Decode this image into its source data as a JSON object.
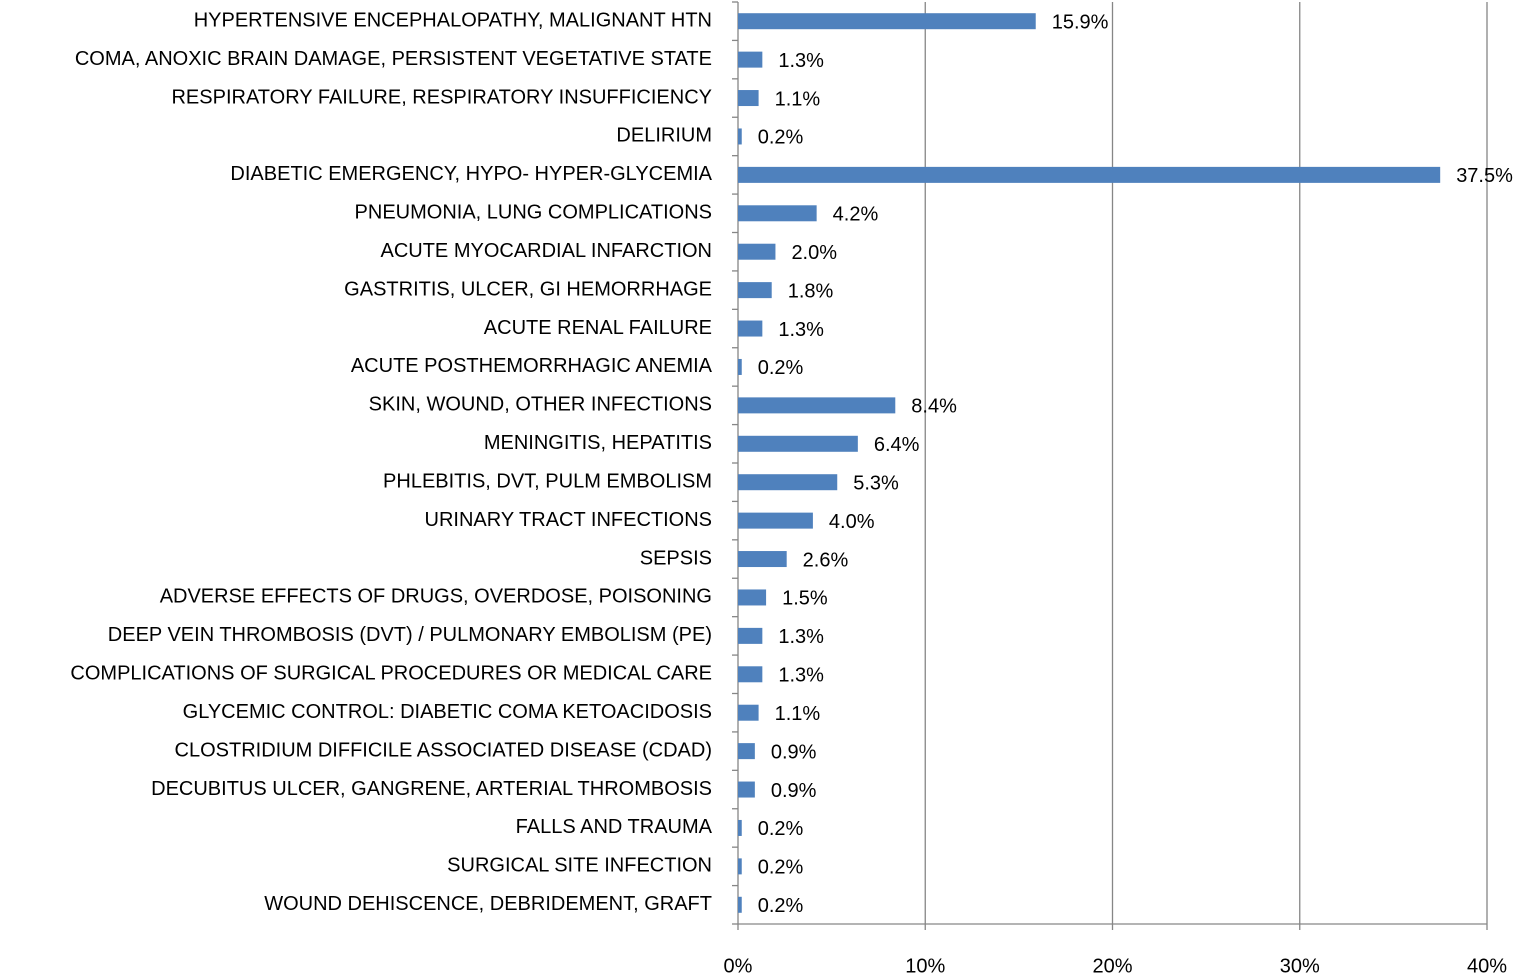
{
  "chart_data": {
    "type": "bar",
    "orientation": "horizontal",
    "categories": [
      "HYPERTENSIVE ENCEPHALOPATHY, MALIGNANT HTN",
      "COMA, ANOXIC BRAIN DAMAGE, PERSISTENT VEGETATIVE STATE",
      "RESPIRATORY FAILURE, RESPIRATORY INSUFFICIENCY",
      "DELIRIUM",
      "DIABETIC EMERGENCY, HYPO- HYPER-GLYCEMIA",
      "PNEUMONIA, LUNG COMPLICATIONS",
      "ACUTE MYOCARDIAL INFARCTION",
      "GASTRITIS, ULCER, GI HEMORRHAGE",
      "ACUTE RENAL FAILURE",
      "ACUTE POSTHEMORRHAGIC ANEMIA",
      "SKIN, WOUND, OTHER INFECTIONS",
      "MENINGITIS, HEPATITIS",
      "PHLEBITIS, DVT, PULM EMBOLISM",
      "URINARY TRACT INFECTIONS",
      "SEPSIS",
      "ADVERSE EFFECTS OF DRUGS, OVERDOSE, POISONING",
      "DEEP VEIN THROMBOSIS (DVT) / PULMONARY EMBOLISM (PE)",
      "COMPLICATIONS OF SURGICAL PROCEDURES OR MEDICAL CARE",
      "GLYCEMIC CONTROL: DIABETIC COMA KETOACIDOSIS",
      "CLOSTRIDIUM DIFFICILE ASSOCIATED DISEASE (CDAD)",
      "DECUBITUS ULCER, GANGRENE, ARTERIAL THROMBOSIS",
      "FALLS AND TRAUMA",
      "SURGICAL SITE INFECTION",
      "WOUND DEHISCENCE, DEBRIDEMENT, GRAFT"
    ],
    "values": [
      15.9,
      1.3,
      1.1,
      0.2,
      37.5,
      4.2,
      2.0,
      1.8,
      1.3,
      0.2,
      8.4,
      6.4,
      5.3,
      4.0,
      2.6,
      1.5,
      1.3,
      1.3,
      1.1,
      0.9,
      0.9,
      0.2,
      0.2,
      0.2
    ],
    "value_labels": [
      "15.9%",
      "1.3%",
      "1.1%",
      "0.2%",
      "37.5%",
      "4.2%",
      "2.0%",
      "1.8%",
      "1.3%",
      "0.2%",
      "8.4%",
      "6.4%",
      "5.3%",
      "4.0%",
      "2.6%",
      "1.5%",
      "1.3%",
      "1.3%",
      "1.1%",
      "0.9%",
      "0.9%",
      "0.2%",
      "0.2%",
      "0.2%"
    ],
    "color": "#4f81bd",
    "xlim": [
      0,
      40
    ],
    "xticks": [
      {
        "value": 0,
        "label": "0%"
      },
      {
        "value": 10,
        "label": "10%"
      },
      {
        "value": 20,
        "label": "20%"
      },
      {
        "value": 30,
        "label": "30%"
      },
      {
        "value": 40,
        "label": "40%"
      }
    ],
    "grid": true
  }
}
